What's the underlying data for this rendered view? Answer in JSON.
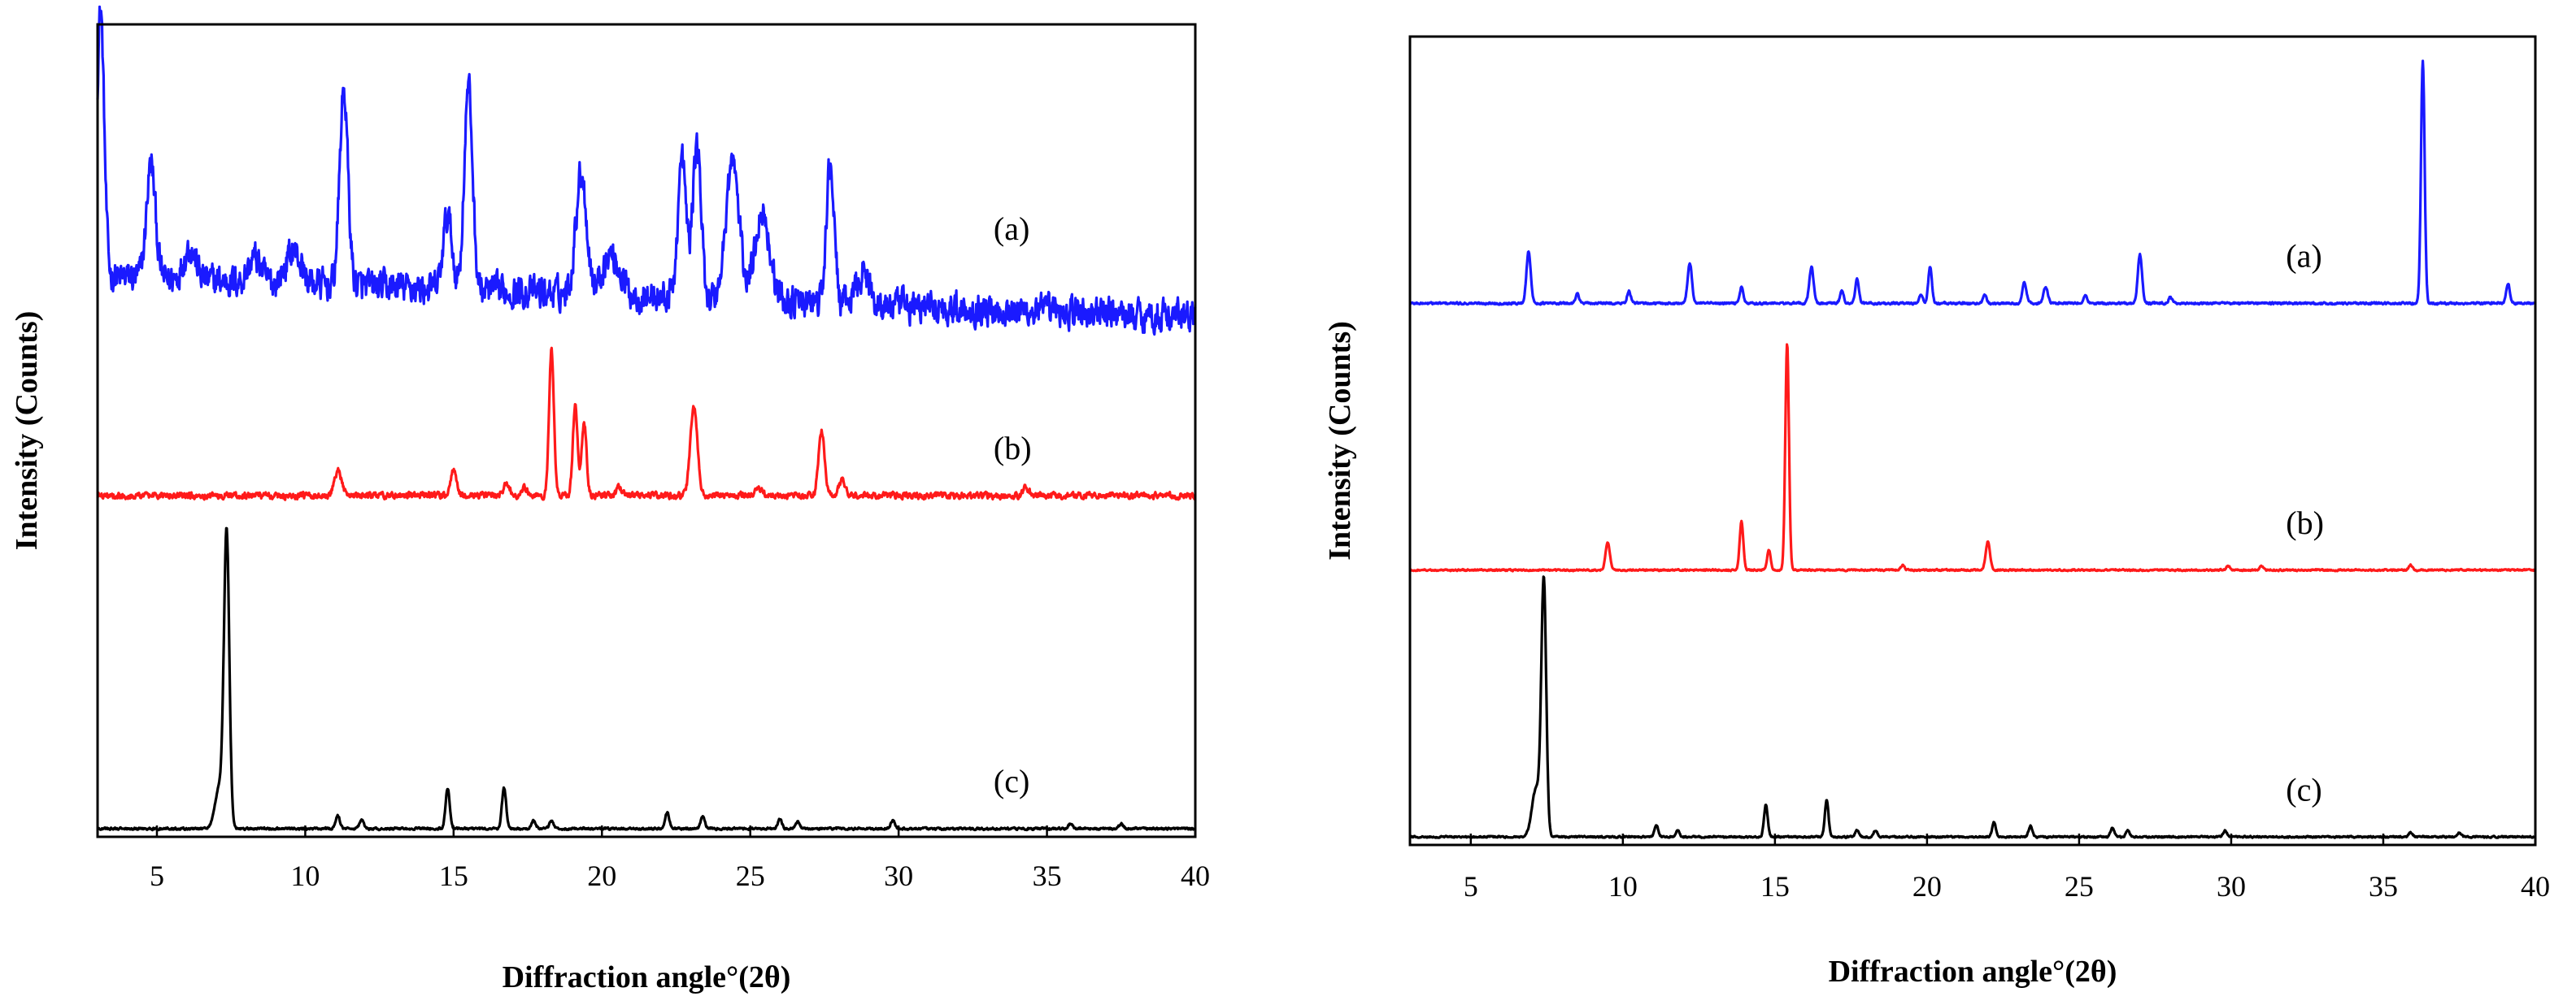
{
  "chart_data": [
    {
      "type": "line",
      "panel": "left",
      "xlabel": "Diffraction angle°(2θ)",
      "ylabel": "Intensity (Counts)",
      "xlim": [
        3,
        40
      ],
      "x_ticks": [
        5,
        10,
        15,
        20,
        25,
        30,
        35,
        40
      ],
      "y_ticks_shown": false,
      "series": [
        {
          "name": "(a)",
          "color": "#1a1aff",
          "baseline": 0.69,
          "noise": 0.03,
          "end_level": 0.64,
          "peaks": [
            [
              3.1,
              0.33,
              0.12
            ],
            [
              4.8,
              0.14,
              0.15
            ],
            [
              6.1,
              0.04,
              0.2
            ],
            [
              8.3,
              0.03,
              0.2
            ],
            [
              9.6,
              0.04,
              0.25
            ],
            [
              11.3,
              0.24,
              0.14
            ],
            [
              14.8,
              0.09,
              0.15
            ],
            [
              15.5,
              0.25,
              0.14
            ],
            [
              19.3,
              0.15,
              0.18
            ],
            [
              20.3,
              0.05,
              0.3
            ],
            [
              22.7,
              0.17,
              0.14
            ],
            [
              23.2,
              0.19,
              0.14
            ],
            [
              24.4,
              0.17,
              0.22
            ],
            [
              25.4,
              0.11,
              0.25
            ],
            [
              27.7,
              0.17,
              0.13
            ],
            [
              28.8,
              0.04,
              0.2
            ]
          ],
          "label_x": 33.2
        },
        {
          "name": "(b)",
          "color": "#ff1a1a",
          "baseline": 0.42,
          "noise": 0.006,
          "end_level": 0.42,
          "peaks": [
            [
              11.1,
              0.03,
              0.12
            ],
            [
              15.0,
              0.03,
              0.1
            ],
            [
              16.8,
              0.015,
              0.1
            ],
            [
              17.4,
              0.01,
              0.1
            ],
            [
              18.3,
              0.18,
              0.08
            ],
            [
              19.1,
              0.11,
              0.08
            ],
            [
              19.4,
              0.09,
              0.08
            ],
            [
              20.6,
              0.01,
              0.1
            ],
            [
              23.1,
              0.11,
              0.12
            ],
            [
              25.3,
              0.01,
              0.1
            ],
            [
              27.4,
              0.08,
              0.1
            ],
            [
              28.1,
              0.02,
              0.1
            ],
            [
              34.3,
              0.01,
              0.1
            ]
          ],
          "label_x": 33.2
        },
        {
          "name": "(c)",
          "color": "#000000",
          "baseline": 0.01,
          "noise": 0.002,
          "end_level": 0.01,
          "peaks": [
            [
              7.35,
              0.36,
              0.09
            ],
            [
              7.1,
              0.05,
              0.14
            ],
            [
              11.1,
              0.016,
              0.07
            ],
            [
              11.9,
              0.01,
              0.07
            ],
            [
              14.8,
              0.05,
              0.07
            ],
            [
              16.7,
              0.05,
              0.07
            ],
            [
              17.7,
              0.01,
              0.07
            ],
            [
              18.3,
              0.01,
              0.07
            ],
            [
              22.2,
              0.02,
              0.07
            ],
            [
              23.4,
              0.015,
              0.07
            ],
            [
              26.0,
              0.012,
              0.07
            ],
            [
              26.6,
              0.008,
              0.07
            ],
            [
              29.8,
              0.01,
              0.07
            ],
            [
              35.8,
              0.006,
              0.07
            ],
            [
              37.5,
              0.006,
              0.07
            ]
          ],
          "label_x": 33.2
        }
      ],
      "labels": [
        "(a)",
        "(b)",
        "(c)"
      ]
    },
    {
      "type": "line",
      "panel": "right",
      "xlabel": "Diffraction angle°(2θ)",
      "ylabel": "Intensity (Counts)",
      "xlim": [
        3,
        40
      ],
      "x_ticks": [
        5,
        10,
        15,
        20,
        25,
        30,
        35,
        40
      ],
      "y_ticks_shown": false,
      "series": [
        {
          "name": "(a)",
          "color": "#1a1aff",
          "baseline": 0.67,
          "noise": 0.002,
          "end_level": 0.67,
          "peaks": [
            [
              6.9,
              0.065,
              0.07
            ],
            [
              8.5,
              0.012,
              0.06
            ],
            [
              10.2,
              0.015,
              0.06
            ],
            [
              12.2,
              0.05,
              0.07
            ],
            [
              13.9,
              0.02,
              0.06
            ],
            [
              16.2,
              0.045,
              0.07
            ],
            [
              17.2,
              0.015,
              0.06
            ],
            [
              17.7,
              0.03,
              0.06
            ],
            [
              19.8,
              0.01,
              0.06
            ],
            [
              20.1,
              0.045,
              0.06
            ],
            [
              21.9,
              0.01,
              0.06
            ],
            [
              23.2,
              0.025,
              0.07
            ],
            [
              23.9,
              0.02,
              0.07
            ],
            [
              25.2,
              0.01,
              0.06
            ],
            [
              27.0,
              0.06,
              0.07
            ],
            [
              28.0,
              0.008,
              0.06
            ],
            [
              36.3,
              0.3,
              0.06
            ],
            [
              39.1,
              0.025,
              0.06
            ]
          ],
          "label_x": 31.8
        },
        {
          "name": "(b)",
          "color": "#ff1a1a",
          "baseline": 0.34,
          "noise": 0.0015,
          "end_level": 0.34,
          "peaks": [
            [
              9.5,
              0.035,
              0.07
            ],
            [
              13.9,
              0.06,
              0.06
            ],
            [
              14.8,
              0.025,
              0.06
            ],
            [
              15.4,
              0.28,
              0.06
            ],
            [
              19.2,
              0.006,
              0.06
            ],
            [
              22.0,
              0.035,
              0.07
            ],
            [
              29.9,
              0.005,
              0.06
            ],
            [
              31.0,
              0.005,
              0.06
            ],
            [
              35.9,
              0.006,
              0.06
            ]
          ],
          "label_x": 31.8
        },
        {
          "name": "(c)",
          "color": "#000000",
          "baseline": 0.01,
          "noise": 0.0015,
          "end_level": 0.01,
          "peaks": [
            [
              7.4,
              0.31,
              0.08
            ],
            [
              7.15,
              0.06,
              0.14
            ],
            [
              11.1,
              0.014,
              0.06
            ],
            [
              11.8,
              0.008,
              0.06
            ],
            [
              14.7,
              0.04,
              0.06
            ],
            [
              16.7,
              0.045,
              0.06
            ],
            [
              17.7,
              0.008,
              0.06
            ],
            [
              18.3,
              0.008,
              0.06
            ],
            [
              22.2,
              0.018,
              0.06
            ],
            [
              23.4,
              0.014,
              0.06
            ],
            [
              26.1,
              0.012,
              0.06
            ],
            [
              26.6,
              0.008,
              0.06
            ],
            [
              29.8,
              0.008,
              0.06
            ],
            [
              35.9,
              0.005,
              0.06
            ],
            [
              37.5,
              0.005,
              0.06
            ]
          ],
          "label_x": 31.8
        }
      ],
      "labels": [
        "(a)",
        "(b)",
        "(c)"
      ]
    }
  ]
}
